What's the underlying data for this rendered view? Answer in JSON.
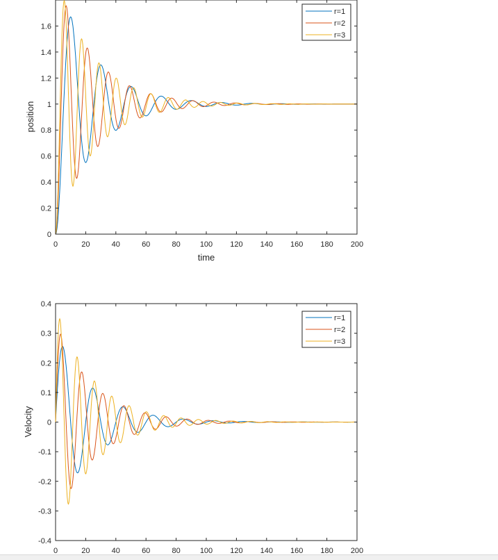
{
  "chart_data": [
    {
      "type": "line",
      "xlabel": "time",
      "ylabel": "position",
      "xlim": [
        0,
        200
      ],
      "ylim": [
        0,
        1.8
      ],
      "xticks": [
        "0",
        "20",
        "40",
        "60",
        "80",
        "100",
        "120",
        "140",
        "160",
        "180",
        "200"
      ],
      "yticks": [
        "0",
        "0.2",
        "0.4",
        "0.6",
        "0.8",
        "1",
        "1.2",
        "1.4",
        "1.6"
      ],
      "legend_position": "top-right",
      "grid": false,
      "series": [
        {
          "name": "r=1",
          "color": "#0072bd",
          "period": 20,
          "decay": 0.04,
          "amplitude": 1.0
        },
        {
          "name": "r=2",
          "color": "#d95319",
          "period": 14,
          "decay": 0.04,
          "amplitude": 1.0
        },
        {
          "name": "r=3",
          "color": "#edb120",
          "period": 11.5,
          "decay": 0.04,
          "amplitude": 1.0
        }
      ]
    },
    {
      "type": "line",
      "xlabel": "",
      "ylabel": "Velocity",
      "xlim": [
        0,
        200
      ],
      "ylim": [
        -0.4,
        0.4
      ],
      "xticks": [
        "0",
        "20",
        "40",
        "60",
        "80",
        "100",
        "120",
        "140",
        "160",
        "180",
        "200"
      ],
      "yticks": [
        "-0.4",
        "-0.3",
        "-0.2",
        "-0.1",
        "0",
        "0.1",
        "0.2",
        "0.3",
        "0.4"
      ],
      "legend_position": "top-right",
      "grid": false,
      "series": [
        {
          "name": "r=1",
          "color": "#0072bd",
          "period": 20,
          "decay": 0.04,
          "amplitude": 0.31
        },
        {
          "name": "r=2",
          "color": "#d95319",
          "period": 14,
          "decay": 0.04,
          "amplitude": 0.34
        },
        {
          "name": "r=3",
          "color": "#edb120",
          "period": 11.5,
          "decay": 0.04,
          "amplitude": 0.39
        }
      ]
    }
  ]
}
